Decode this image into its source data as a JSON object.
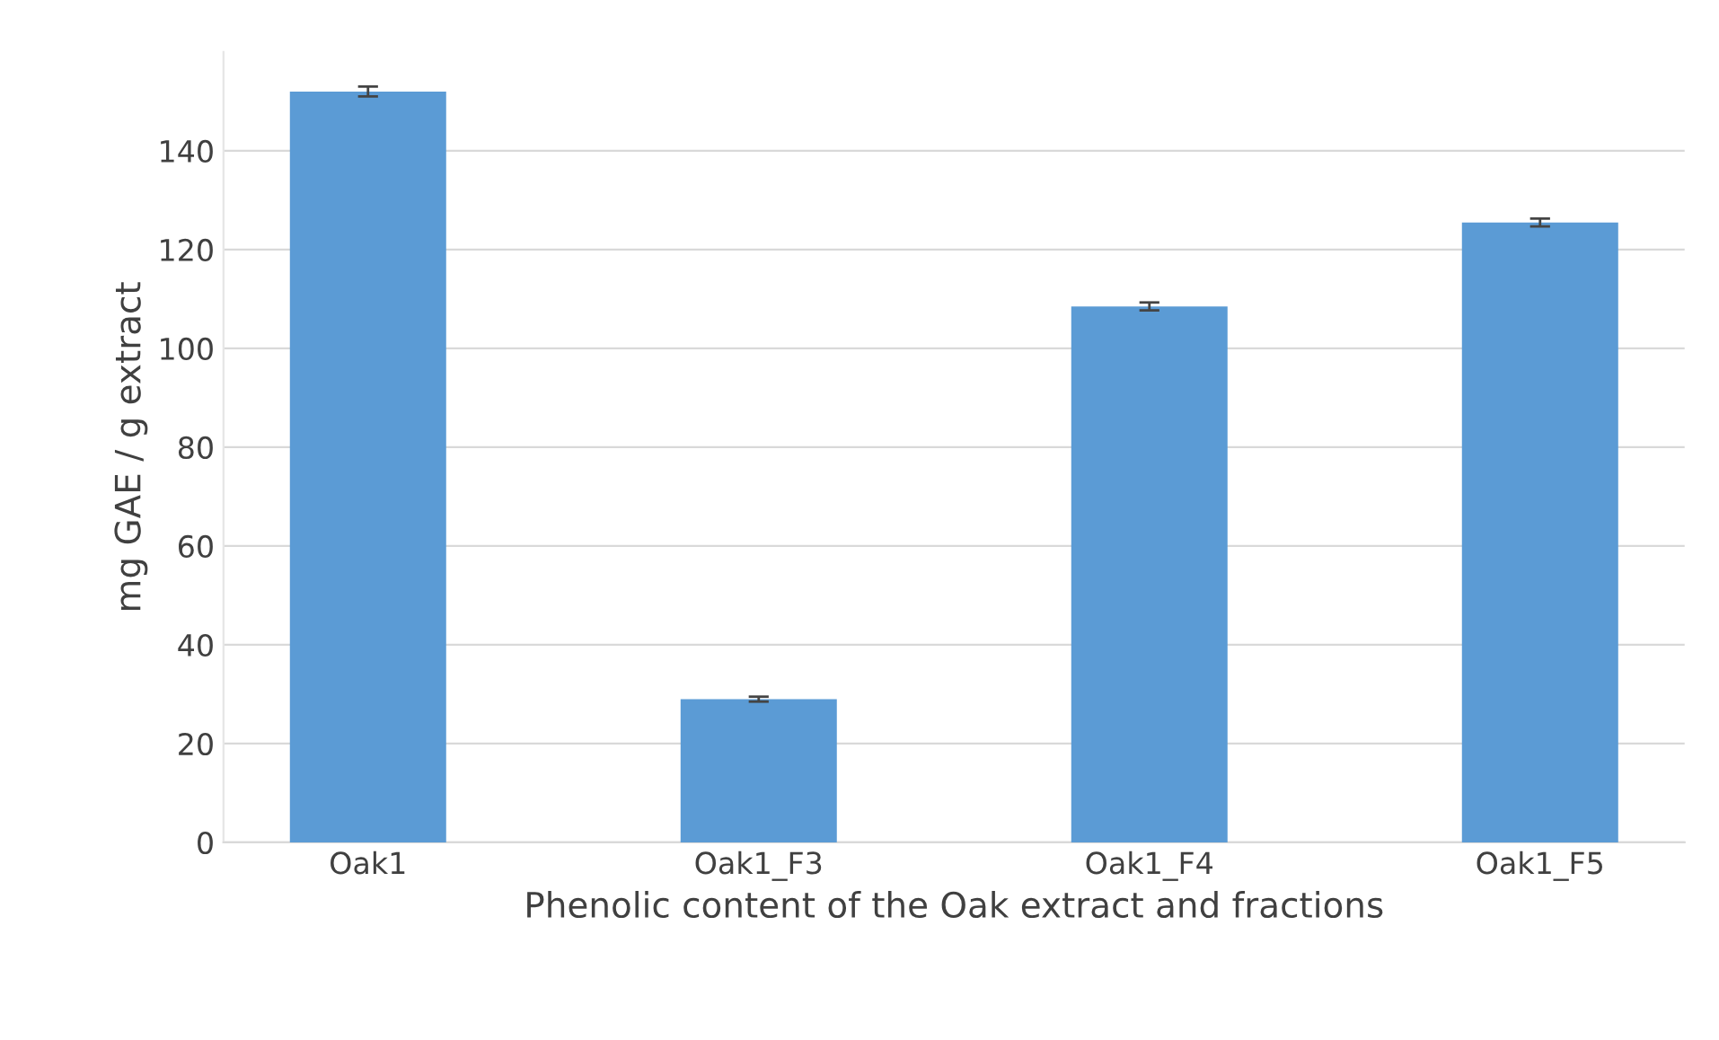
{
  "chart_data": {
    "type": "bar",
    "xlabel": "Phenolic content of the Oak extract and fractions",
    "ylabel": "mg GAE / g extract",
    "categories": [
      "Oak1",
      "Oak1_F3",
      "Oak1_F4",
      "Oak1_F5"
    ],
    "values": [
      152,
      29,
      108.5,
      125.5
    ],
    "errors": [
      1,
      0.5,
      0.8,
      0.8
    ],
    "colors": [
      "#5b9bd5",
      "#5b9bd5",
      "#5b9bd5",
      "#5b9bd5"
    ],
    "ylim": [
      0,
      160
    ],
    "yticks": [
      0,
      20,
      40,
      60,
      80,
      100,
      120,
      140
    ],
    "grid": "y"
  }
}
